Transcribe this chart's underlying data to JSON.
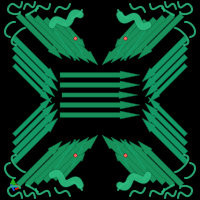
{
  "background_color": "#000000",
  "protein_color_main": "#1a9960",
  "protein_color_light": "#2dbd80",
  "protein_color_dark": "#0d6640",
  "protein_color_mid": "#15a06a",
  "protein_color_bright": "#22cc88",
  "axis_x_color": "#cc2200",
  "axis_y_color": "#22aa22",
  "axis_z_color": "#2255cc",
  "pink_dot_color": "#ff6666",
  "figure_width": 2.0,
  "figure_height": 2.0,
  "dpi": 100,
  "image_size": 200
}
